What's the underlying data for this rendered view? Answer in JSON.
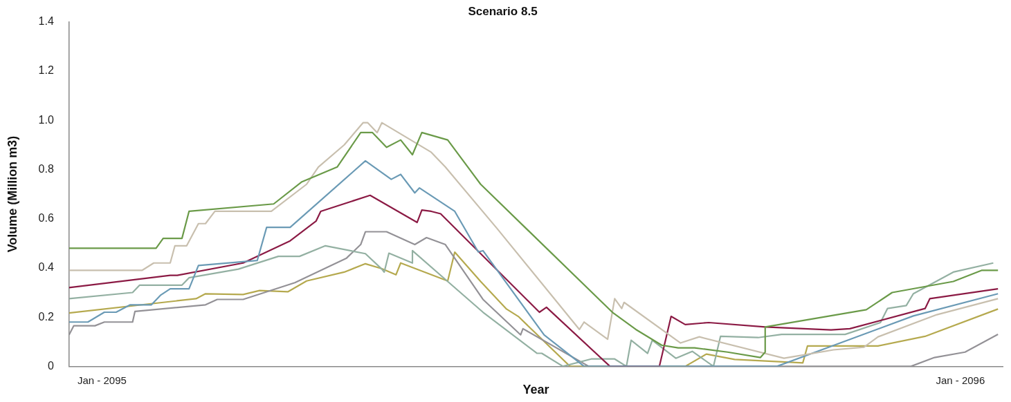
{
  "chart_data": {
    "type": "line",
    "title": "Scenario 8.5",
    "xlabel": "Year",
    "ylabel": "Volume (Million m3)",
    "xlim": [
      "2095-01-01",
      "2096-02-02"
    ],
    "xticks": [
      {
        "value": "2095-01-15",
        "label": "Jan - 2095"
      },
      {
        "value": "2096-01-15",
        "label": "Jan - 2096"
      }
    ],
    "ylim": [
      0,
      1.4
    ],
    "yticks": [
      0,
      0.2,
      0.4,
      0.6,
      0.8,
      {
        "value": 1,
        "label": "1.0"
      },
      1.2,
      1.4
    ],
    "marker": "none",
    "line_style": "solid",
    "series": [
      {
        "color": "#6a9a48",
        "x": [
          "2095-01-01",
          "2095-02-07",
          "2095-02-10",
          "2095-02-18",
          "2095-02-21",
          "2095-03-29",
          "2095-04-10",
          "2095-04-25",
          "2095-05-05",
          "2095-05-10",
          "2095-05-16",
          "2095-05-22",
          "2095-05-27",
          "2095-05-31",
          "2095-06-11",
          "2095-06-25",
          "2095-08-20",
          "2095-08-30",
          "2095-09-10",
          "2095-09-17",
          "2095-09-24",
          "2095-10-08",
          "2095-10-22",
          "2095-10-24",
          "2095-10-24",
          "2095-12-06",
          "2095-12-17",
          "2096-01-12",
          "2096-01-24",
          "2096-01-31"
        ],
        "values": [
          0.48,
          0.48,
          0.52,
          0.52,
          0.63,
          0.66,
          0.75,
          0.81,
          0.95,
          0.95,
          0.89,
          0.92,
          0.86,
          0.95,
          0.92,
          0.74,
          0.22,
          0.15,
          0.086,
          0.075,
          0.075,
          0.058,
          0.036,
          0.058,
          0.16,
          0.23,
          0.3,
          0.345,
          0.39,
          0.39
        ]
      },
      {
        "color": "#c8bfae",
        "x": [
          "2095-01-01",
          "2095-02-01",
          "2095-02-06",
          "2095-02-13",
          "2095-02-15",
          "2095-02-20",
          "2095-02-25",
          "2095-02-28",
          "2095-03-04",
          "2095-03-28",
          "2095-04-12",
          "2095-04-17",
          "2095-04-28",
          "2095-05-06",
          "2095-05-08",
          "2095-05-12",
          "2095-05-14",
          "2095-06-04",
          "2095-06-10",
          "2095-07-02",
          "2095-08-06",
          "2095-08-08",
          "2095-08-18",
          "2095-08-21",
          "2095-08-24",
          "2095-08-25",
          "2095-09-18",
          "2095-09-26",
          "2095-11-01",
          "2095-11-22",
          "2095-12-05",
          "2095-12-11",
          "2096-01-05",
          "2096-01-31"
        ],
        "values": [
          0.39,
          0.39,
          0.42,
          0.42,
          0.49,
          0.49,
          0.58,
          0.58,
          0.63,
          0.63,
          0.74,
          0.81,
          0.9,
          0.99,
          0.99,
          0.95,
          0.99,
          0.87,
          0.81,
          0.56,
          0.15,
          0.18,
          0.11,
          0.275,
          0.235,
          0.26,
          0.095,
          0.12,
          0.033,
          0.067,
          0.078,
          0.12,
          0.21,
          0.275
        ]
      },
      {
        "color": "#6a9ab5",
        "x": [
          "2095-01-01",
          "2095-01-09",
          "2095-01-16",
          "2095-01-21",
          "2095-01-27",
          "2095-02-05",
          "2095-02-09",
          "2095-02-13",
          "2095-02-21",
          "2095-02-25",
          "2095-03-22",
          "2095-03-26",
          "2095-04-05",
          "2095-05-07",
          "2095-05-18",
          "2095-05-22",
          "2095-05-28",
          "2095-05-30",
          "2095-06-14",
          "2095-06-24",
          "2095-06-26",
          "2095-07-22",
          "2095-08-08",
          "2095-10-29",
          "2095-12-26",
          "2096-01-31"
        ],
        "values": [
          0.18,
          0.18,
          0.22,
          0.22,
          0.25,
          0.25,
          0.29,
          0.315,
          0.315,
          0.41,
          0.43,
          0.565,
          0.565,
          0.835,
          0.76,
          0.78,
          0.705,
          0.725,
          0.63,
          0.465,
          0.47,
          0.128,
          0,
          0,
          0.205,
          0.295
        ]
      },
      {
        "color": "#8b1a44",
        "x": [
          "2095-01-01",
          "2095-02-13",
          "2095-02-16",
          "2095-03-16",
          "2095-04-05",
          "2095-04-16",
          "2095-04-18",
          "2095-05-09",
          "2095-05-29",
          "2095-05-31",
          "2095-06-04",
          "2095-06-08",
          "2095-07-20",
          "2095-07-23",
          "2095-08-19",
          "2095-09-09",
          "2095-09-14",
          "2095-09-20",
          "2095-09-30",
          "2095-10-24",
          "2095-11-21",
          "2095-11-29",
          "2095-12-31",
          "2096-01-02",
          "2096-01-31"
        ],
        "values": [
          0.32,
          0.37,
          0.37,
          0.42,
          0.51,
          0.59,
          0.63,
          0.695,
          0.585,
          0.635,
          0.63,
          0.62,
          0.22,
          0.24,
          0,
          0,
          0.203,
          0.17,
          0.178,
          0.16,
          0.148,
          0.153,
          0.235,
          0.275,
          0.315
        ]
      },
      {
        "color": "#93b0a2",
        "x": [
          "2095-01-01",
          "2095-01-28",
          "2095-01-31",
          "2095-02-18",
          "2095-02-21",
          "2095-03-14",
          "2095-03-31",
          "2095-04-09",
          "2095-04-20",
          "2095-05-07",
          "2095-05-14",
          "2095-05-15",
          "2095-05-17",
          "2095-05-27",
          "2095-05-27",
          "2095-06-11",
          "2095-06-26",
          "2095-07-19",
          "2095-07-21",
          "2095-07-30",
          "2095-08-11",
          "2095-08-21",
          "2095-08-26",
          "2095-08-28",
          "2095-09-04",
          "2095-09-06",
          "2095-09-16",
          "2095-09-23",
          "2095-10-02",
          "2095-10-05",
          "2095-10-21",
          "2095-10-31",
          "2095-11-27",
          "2095-12-12",
          "2095-12-15",
          "2095-12-23",
          "2095-12-26",
          "2096-01-12",
          "2096-01-29"
        ],
        "values": [
          0.275,
          0.3,
          0.33,
          0.33,
          0.36,
          0.395,
          0.447,
          0.447,
          0.49,
          0.458,
          0.395,
          0.383,
          0.46,
          0.42,
          0.47,
          0.345,
          0.22,
          0.053,
          0.053,
          0,
          0.03,
          0.03,
          0,
          0.106,
          0.053,
          0.106,
          0.033,
          0.061,
          0,
          0.122,
          0.117,
          0.13,
          0.13,
          0.178,
          0.235,
          0.247,
          0.295,
          0.383,
          0.42
        ]
      },
      {
        "color": "#939196",
        "x": [
          "2095-01-01",
          "2095-01-03",
          "2095-01-12",
          "2095-01-16",
          "2095-01-28",
          "2095-01-29",
          "2095-02-28",
          "2095-03-05",
          "2095-03-16",
          "2095-04-07",
          "2095-04-29",
          "2095-05-05",
          "2095-05-07",
          "2095-05-16",
          "2095-05-28",
          "2095-06-02",
          "2095-06-10",
          "2095-06-26",
          "2095-07-12",
          "2095-07-13",
          "2095-08-10",
          "2095-12-25",
          "2096-01-04",
          "2096-01-17",
          "2096-01-31"
        ],
        "values": [
          0.128,
          0.165,
          0.165,
          0.18,
          0.18,
          0.223,
          0.25,
          0.272,
          0.272,
          0.34,
          0.44,
          0.495,
          0.547,
          0.547,
          0.495,
          0.523,
          0.495,
          0.272,
          0.128,
          0.153,
          0,
          0,
          0.036,
          0.058,
          0.13
        ]
      },
      {
        "color": "#b5a94e",
        "x": [
          "2095-01-01",
          "2095-02-24",
          "2095-02-28",
          "2095-03-16",
          "2095-03-23",
          "2095-04-04",
          "2095-04-12",
          "2095-04-28",
          "2095-05-07",
          "2095-05-14",
          "2095-05-20",
          "2095-05-22",
          "2095-06-11",
          "2095-06-14",
          "2095-06-25",
          "2095-07-06",
          "2095-07-11",
          "2095-08-02",
          "2095-09-20",
          "2095-09-29",
          "2095-10-11",
          "2095-11-09",
          "2095-11-11",
          "2095-12-11",
          "2095-12-31",
          "2096-01-31"
        ],
        "values": [
          0.217,
          0.275,
          0.295,
          0.292,
          0.308,
          0.303,
          0.347,
          0.383,
          0.417,
          0.397,
          0.372,
          0.42,
          0.347,
          0.464,
          0.345,
          0.233,
          0.203,
          0,
          0,
          0.05,
          0.028,
          0.014,
          0.083,
          0.083,
          0.122,
          0.233
        ]
      }
    ]
  }
}
